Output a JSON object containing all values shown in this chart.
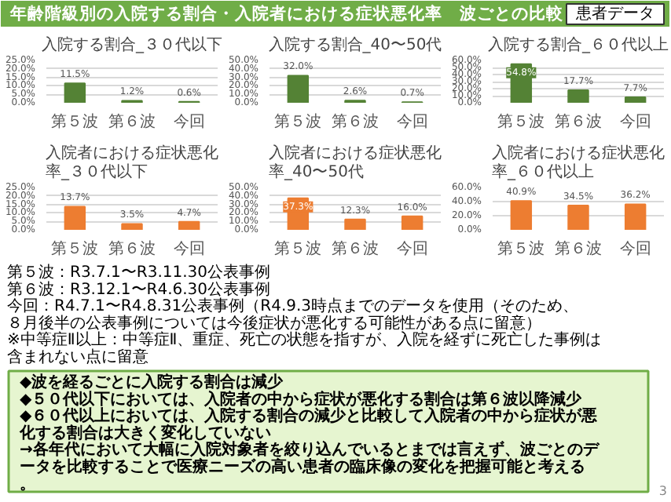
{
  "chart_data": [
    {
      "type": "other",
      "title": "年齢階級別の入院する割合・入院者における症状悪化率　波ごとの比較",
      "annotations": [
        "患者データ"
      ]
    },
    {
      "type": "bar",
      "title": "入院する割合_３０代以下",
      "categories": [
        "第５波",
        "第６波",
        "今回"
      ],
      "values": [
        11.5,
        1.2,
        0.6
      ],
      "color": "#548235",
      "value_labels": [
        "11.5%",
        "1.2%",
        "0.6%"
      ],
      "ylim": [
        0,
        25
      ],
      "yticks": [
        {
          "value": 0,
          "label": "0.0%"
        },
        {
          "value": 5,
          "label": "5.0%"
        },
        {
          "value": 10,
          "label": "10.0%"
        },
        {
          "value": 15,
          "label": "15.0%"
        },
        {
          "value": 20,
          "label": "20.0%"
        },
        {
          "value": 25,
          "label": "25.0%"
        }
      ],
      "grid": "y"
    },
    {
      "type": "bar",
      "title": "入院する割合_40〜50代",
      "categories": [
        "第５波",
        "第６波",
        "今回"
      ],
      "values": [
        32.0,
        2.6,
        0.7
      ],
      "color": "#548235",
      "value_labels": [
        "32.0%",
        "2.6%",
        "0.7%"
      ],
      "ylim": [
        0,
        50
      ],
      "yticks": [
        {
          "value": 0,
          "label": "0.0%"
        },
        {
          "value": 10,
          "label": "10.0%"
        },
        {
          "value": 20,
          "label": "20.0%"
        },
        {
          "value": 30,
          "label": "30.0%"
        },
        {
          "value": 40,
          "label": "40.0%"
        },
        {
          "value": 50,
          "label": "50.0%"
        }
      ],
      "grid": "y"
    },
    {
      "type": "bar",
      "title": "入院する割合_６０代以上",
      "categories": [
        "第５波",
        "第６波",
        "今回"
      ],
      "values": [
        54.8,
        17.7,
        7.7
      ],
      "color": "#548235",
      "value_labels": [
        "54.8%",
        "17.7%",
        "7.7%"
      ],
      "ylim": [
        0,
        60
      ],
      "yticks": [
        {
          "value": 0,
          "label": "0.0%"
        },
        {
          "value": 10,
          "label": "10.0%"
        },
        {
          "value": 20,
          "label": "20.0%"
        },
        {
          "value": 30,
          "label": "30.0%"
        },
        {
          "value": 40,
          "label": "40.0%"
        },
        {
          "value": 50,
          "label": "50.0%"
        },
        {
          "value": 60,
          "label": "60.0%"
        }
      ],
      "grid": "y"
    },
    {
      "type": "bar",
      "title": "入院者における症状悪化率_３０代以下",
      "categories": [
        "第５波",
        "第６波",
        "今回"
      ],
      "values": [
        13.7,
        3.5,
        4.7
      ],
      "color": "#ed7d31",
      "value_labels": [
        "13.7%",
        "3.5%",
        "4.7%"
      ],
      "ylim": [
        0,
        25
      ],
      "yticks": [
        {
          "value": 0,
          "label": "0.0%"
        },
        {
          "value": 5,
          "label": "5.0%"
        },
        {
          "value": 10,
          "label": "10.0%"
        },
        {
          "value": 15,
          "label": "15.0%"
        },
        {
          "value": 20,
          "label": "20.0%"
        },
        {
          "value": 25,
          "label": "25.0%"
        }
      ],
      "grid": "y"
    },
    {
      "type": "bar",
      "title": "入院者における症状悪化率_40〜50代",
      "categories": [
        "第５波",
        "第６波",
        "今回"
      ],
      "values": [
        37.3,
        12.3,
        16.0
      ],
      "color": "#ed7d31",
      "value_labels": [
        "37.3%",
        "12.3%",
        "16.0%"
      ],
      "ylim": [
        0,
        50
      ],
      "yticks": [
        {
          "value": 0,
          "label": "0.0%"
        },
        {
          "value": 10,
          "label": "10.0%"
        },
        {
          "value": 20,
          "label": "20.0%"
        },
        {
          "value": 30,
          "label": "30.0%"
        },
        {
          "value": 40,
          "label": "40.0%"
        },
        {
          "value": 50,
          "label": "50.0%"
        }
      ],
      "grid": "y"
    },
    {
      "type": "bar",
      "title": "入院者における症状悪化率_６０代以上",
      "categories": [
        "第５波",
        "第６波",
        "今回"
      ],
      "values": [
        40.9,
        34.5,
        36.2
      ],
      "color": "#ed7d31",
      "value_labels": [
        "40.9%",
        "34.5%",
        "36.2%"
      ],
      "ylim": [
        0,
        60
      ],
      "yticks": [
        {
          "value": 0,
          "label": "0.0%"
        },
        {
          "value": 20,
          "label": "20.0%"
        },
        {
          "value": 40,
          "label": "40.0%"
        },
        {
          "value": 60,
          "label": "60.0%"
        }
      ],
      "grid": "y"
    },
    {
      "type": "other",
      "annotations": [
        "第５波：R3.7.1〜R3.11.30公表事例",
        "第６波：R3.12.1〜R4.6.30公表事例",
        "今回：R4.7.1〜R4.8.31公表事例（R4.9.3時点までのデータを使用（そのため、８月後半の公表事例については今後症状が悪化する可能性がある点に留意）",
        "※中等症Ⅱ以上：中等症Ⅱ、重症、死亡の状態を指すが、入院を経ずに死亡した事例は含まれない点に留意"
      ]
    },
    {
      "type": "other",
      "annotations": [
        "◆波を経るごとに入院する割合は減少",
        "◆５０代以下においては、入院者の中から症状が悪化する割合は第６波以降減少",
        "◆６０代以上においては、入院する割合の減少と比較して入院者の中から症状が悪化する割合は大きく変化していない",
        "→各年代において大幅に入院対象者を絞り込んでいるとまでは言えず、波ごとのデータを比較することで医療ニーズの高い患者の臨床像の変化を把握可能と考える。",
        "3"
      ]
    }
  ]
}
